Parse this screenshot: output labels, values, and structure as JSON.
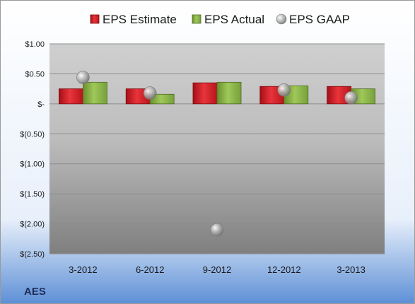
{
  "chart_data": {
    "type": "bar",
    "ticker": "AES",
    "categories": [
      "3-2012",
      "6-2012",
      "9-2012",
      "12-2012",
      "3-2013"
    ],
    "series": [
      {
        "name": "EPS Estimate",
        "kind": "bar",
        "color": "#d9262e",
        "values": [
          0.25,
          0.25,
          0.35,
          0.29,
          0.29
        ]
      },
      {
        "name": "EPS Actual",
        "kind": "bar",
        "color": "#8fb849",
        "values": [
          0.36,
          0.16,
          0.36,
          0.3,
          0.25
        ]
      },
      {
        "name": "EPS GAAP",
        "kind": "scatter",
        "color": "#a8a8a8",
        "values": [
          0.44,
          0.18,
          -2.1,
          0.23,
          0.1
        ]
      }
    ],
    "ylim": [
      -2.5,
      1.0
    ],
    "yticks": [
      1.0,
      0.5,
      0.0,
      -0.5,
      -1.0,
      -1.5,
      -2.0,
      -2.5
    ],
    "ytick_labels": [
      "$1.00",
      "$0.50",
      "$-",
      "$(0.50)",
      "$(1.00)",
      "$(1.50)",
      "$(2.00)",
      "$(2.50)"
    ],
    "legend_position": "top",
    "grid": true
  }
}
